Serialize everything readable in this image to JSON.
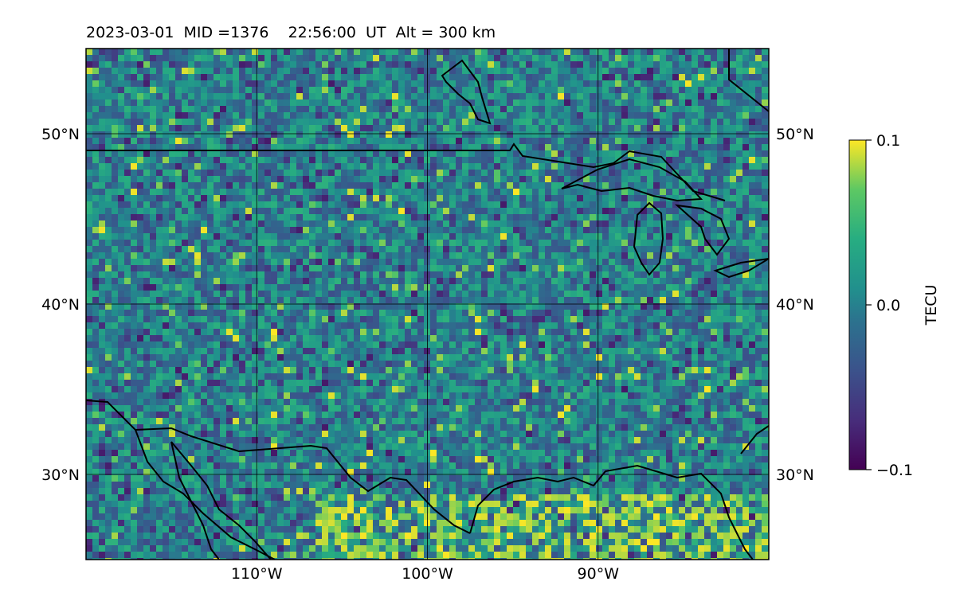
{
  "title": "2023-03-01  MID =1376    22:56:00  UT  Alt = 300 km",
  "map": {
    "lon_range": [
      -120,
      -80
    ],
    "lat_range": [
      25,
      55
    ],
    "lat_ticks": [
      {
        "value": 50,
        "label": "50°N"
      },
      {
        "value": 40,
        "label": "40°N"
      },
      {
        "value": 30,
        "label": "30°N"
      }
    ],
    "lon_ticks": [
      {
        "value": -110,
        "label": "110°W"
      },
      {
        "value": -100,
        "label": "100°W"
      },
      {
        "value": -90,
        "label": "90°W"
      }
    ],
    "grid": true,
    "colormap": "viridis",
    "field": "TEC perturbation (gridded cells)"
  },
  "colorbar": {
    "label": "TECU",
    "min": -0.1,
    "max": 0.1,
    "ticks": [
      {
        "value": 0.1,
        "label": "0.1"
      },
      {
        "value": 0.0,
        "label": "0.0"
      },
      {
        "value": -0.1,
        "label": "−0.1"
      }
    ]
  },
  "colors": {
    "viridis_low": "#440154",
    "viridis_mid": "#21908d",
    "viridis_high": "#fde725"
  }
}
